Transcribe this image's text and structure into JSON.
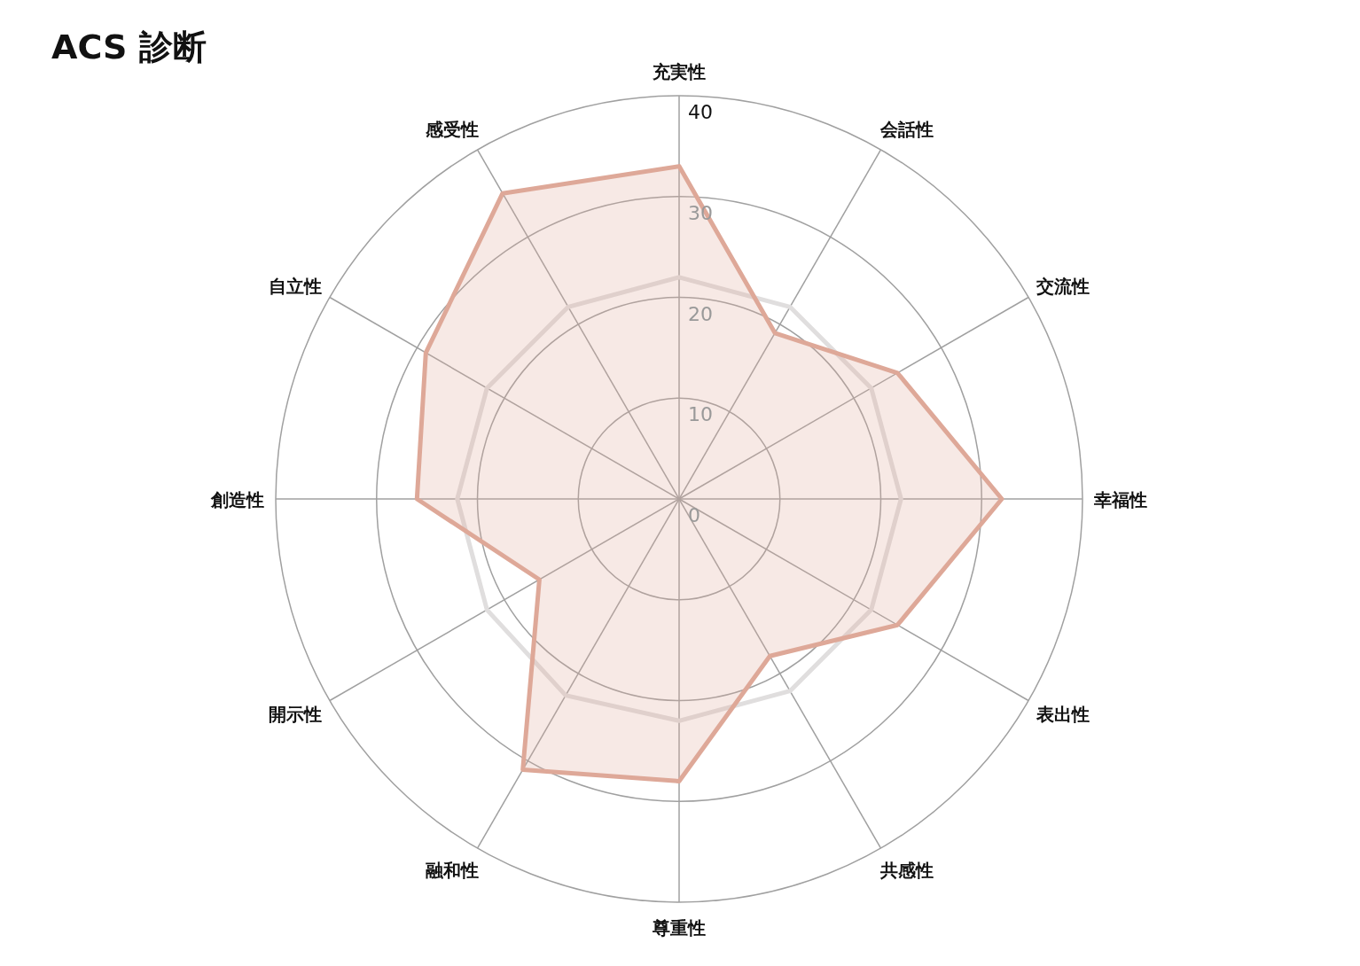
{
  "chart_data": {
    "type": "radar",
    "title": "ACS 診断",
    "categories": [
      "充実性",
      "会話性",
      "交流性",
      "幸福性",
      "表出性",
      "共感性",
      "尊重性",
      "融和性",
      "開示性",
      "創造性",
      "自立性",
      "感受性"
    ],
    "series": [
      {
        "color": "#dea898",
        "values": [
          33,
          19,
          25,
          32,
          25,
          18,
          28,
          31,
          16,
          26,
          29,
          35
        ]
      },
      {
        "color": "#e0dede",
        "values": [
          22,
          22,
          22,
          22,
          22,
          22,
          22,
          22.5,
          22,
          22,
          22,
          22
        ]
      }
    ],
    "ylim": [
      0,
      40
    ],
    "yticks": [
      0,
      10,
      20,
      30,
      40
    ],
    "grid": true
  }
}
